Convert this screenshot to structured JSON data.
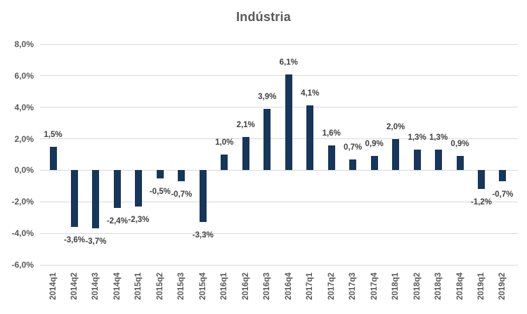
{
  "chart_data": {
    "type": "bar",
    "title": "Indústria",
    "categories": [
      "2014q1",
      "2014q2",
      "2014q3",
      "2014q4",
      "2015q1",
      "2015q2",
      "2015q3",
      "2015q4",
      "2016q1",
      "2016q2",
      "2016q3",
      "2016q4",
      "2017q1",
      "2017q2",
      "2017q3",
      "2017q4",
      "2018q1",
      "2018q2",
      "2018q3",
      "2018q4",
      "2019q1",
      "2019q2"
    ],
    "values": [
      1.5,
      -3.6,
      -3.7,
      -2.4,
      -2.3,
      -0.5,
      -0.7,
      -3.3,
      1.0,
      2.1,
      3.9,
      6.1,
      4.1,
      1.6,
      0.7,
      0.9,
      2.0,
      1.3,
      1.3,
      0.9,
      -1.2,
      -0.7
    ],
    "labels": [
      "1,5%",
      "-3,6%",
      "-3,7%",
      "-2,4%",
      "-2,3%",
      "-0,5%",
      "-0,7%",
      "-3,3%",
      "1,0%",
      "2,1%",
      "3,9%",
      "6,1%",
      "4,1%",
      "1,6%",
      "0,7%",
      "0,9%",
      "2,0%",
      "1,3%",
      "1,3%",
      "0,9%",
      "-1,2%",
      "-0,7%"
    ],
    "y_ticks": [
      "8,0%",
      "6,0%",
      "4,0%",
      "2,0%",
      "0,0%",
      "-2,0%",
      "-4,0%",
      "-6,0%"
    ],
    "ylim": [
      -6,
      8
    ],
    "y_step": 2,
    "xlabel": "",
    "ylabel": "",
    "grid": true,
    "legend": "none",
    "colors": {
      "bar": "#16365c",
      "gridline": "#d9d9d9",
      "value_label": "#404040",
      "axis_label": "#595959",
      "title": "#595959",
      "background": "#ffffff"
    }
  }
}
